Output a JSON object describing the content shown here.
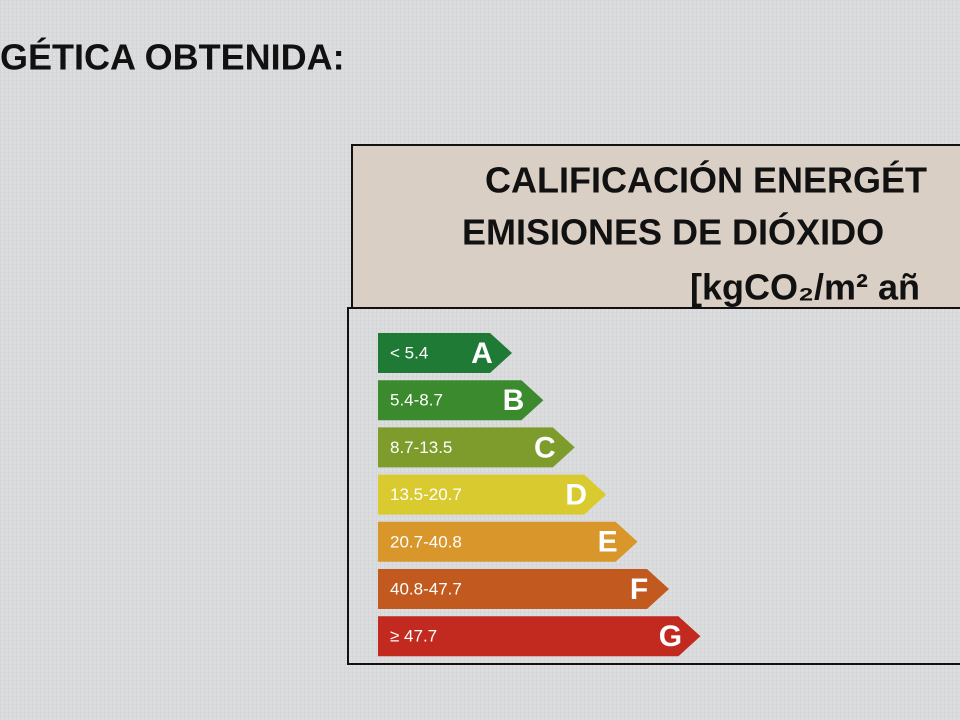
{
  "heading": "GÉTICA OBTENIDA:",
  "table": {
    "header": [
      "CALIFICACIÓN ENERGÉT",
      "EMISIONES DE DIÓXIDO",
      "[kgCO₂/m² añ"
    ],
    "ratings": [
      {
        "range": "< 5.4",
        "letter": "A"
      },
      {
        "range": "5.4-8.7",
        "letter": "B"
      },
      {
        "range": "8.7-13.5",
        "letter": "C"
      },
      {
        "range": "13.5-20.7",
        "letter": "D"
      },
      {
        "range": "20.7-40.8",
        "letter": "E"
      },
      {
        "range": "40.8-47.7",
        "letter": "F"
      },
      {
        "range": "≥ 47.7",
        "letter": "G"
      }
    ]
  }
}
